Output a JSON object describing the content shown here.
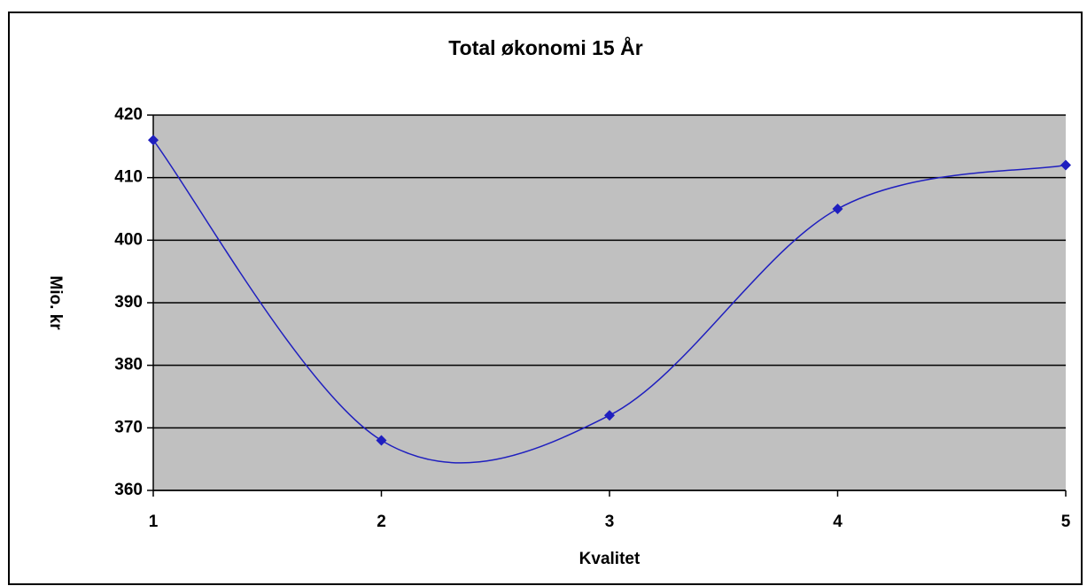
{
  "chart_data": {
    "type": "line",
    "title": "Total økonomi 15 År",
    "x_label": "Kvalitet",
    "y_label": "Mio. kr",
    "x": [
      1,
      2,
      3,
      4,
      5
    ],
    "series": [
      {
        "name": "Total økonomi",
        "color": "#1f1fbf",
        "values": [
          416,
          368,
          372,
          405,
          412
        ]
      }
    ],
    "xlim": [
      1,
      5
    ],
    "xticks": [
      1,
      2,
      3,
      4,
      5
    ],
    "ylim": [
      360,
      420
    ],
    "yticks": [
      360,
      370,
      380,
      390,
      400,
      410,
      420
    ],
    "grid": true,
    "smooth": true
  }
}
